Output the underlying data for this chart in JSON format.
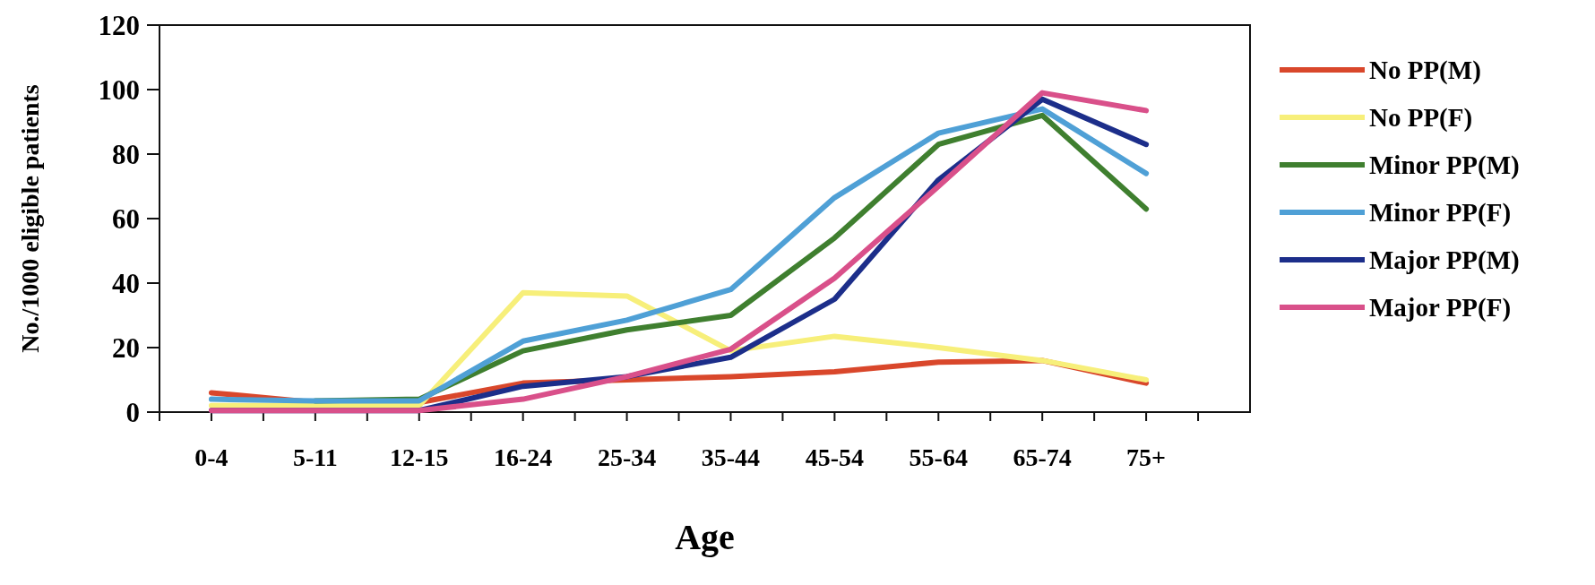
{
  "chart_data": {
    "type": "line",
    "xlabel": "Age",
    "ylabel": "No./1000 eligible patients",
    "categories": [
      "0-4",
      "5-11",
      "12-15",
      "16-24",
      "25-34",
      "35-44",
      "45-54",
      "55-64",
      "65-74",
      "75+"
    ],
    "ylim": [
      0,
      120
    ],
    "yticks": [
      0,
      20,
      40,
      60,
      80,
      100,
      120
    ],
    "legend": "right",
    "grid": false,
    "marker": "none",
    "line_style": "solid",
    "series": [
      {
        "name": "No PP(M)",
        "color": "#d9472b",
        "values": [
          6,
          3,
          3,
          9,
          10,
          11,
          12.5,
          15.5,
          16,
          9
        ]
      },
      {
        "name": "No PP(F)",
        "color": "#f7ef7a",
        "values": [
          2,
          2,
          2,
          37,
          36,
          19,
          23.5,
          20,
          16,
          10
        ]
      },
      {
        "name": "Minor PP(M)",
        "color": "#3f7f2f",
        "values": [
          null,
          3.5,
          4,
          19,
          25.5,
          30,
          54,
          83,
          92,
          63
        ]
      },
      {
        "name": "Minor PP(F)",
        "color": "#4fa0d6",
        "values": [
          4,
          3.5,
          3.5,
          22,
          28.5,
          38,
          66.5,
          86.5,
          94,
          74
        ]
      },
      {
        "name": "Major PP(M)",
        "color": "#1c2e8a",
        "values": [
          0.5,
          0.5,
          0.5,
          8,
          11,
          17,
          35,
          72,
          97,
          83
        ]
      },
      {
        "name": "Major PP(F)",
        "color": "#d9508a",
        "values": [
          0.5,
          0.5,
          0.5,
          4,
          11,
          19.5,
          41.5,
          70,
          99,
          93.5
        ]
      }
    ]
  }
}
